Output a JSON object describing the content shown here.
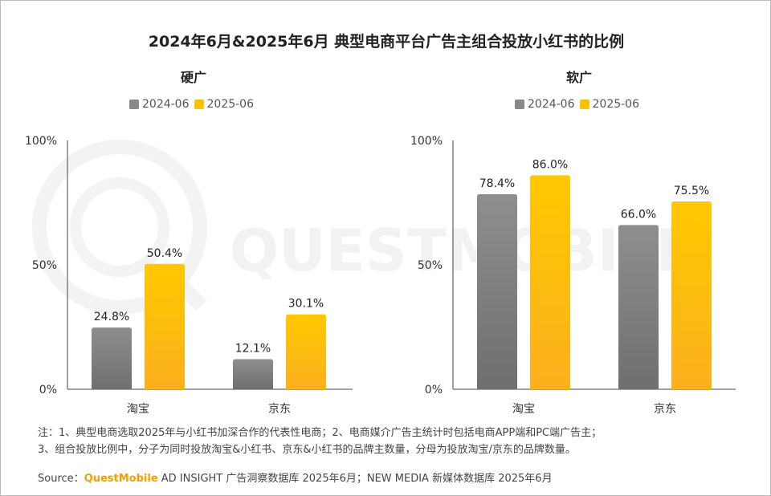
{
  "title": "2024年6月&2025年6月 典型电商平台广告主组合投放小红书的比例",
  "watermark_text": "QUESTMOBILE",
  "colors": {
    "series_2024": "#888888",
    "series_2025": "#ffc000",
    "axis": "#444444"
  },
  "chart_data": [
    {
      "type": "bar",
      "title": "硬广",
      "categories": [
        "淘宝",
        "京东"
      ],
      "series": [
        {
          "name": "2024-06",
          "values": [
            24.8,
            12.1
          ],
          "labels": [
            "24.8%",
            "12.1%"
          ]
        },
        {
          "name": "2025-06",
          "values": [
            50.4,
            30.1
          ],
          "labels": [
            "50.4%",
            "30.1%"
          ]
        }
      ],
      "ylim": [
        0,
        100
      ],
      "yticks": [
        "0%",
        "50%",
        "100%"
      ],
      "legend_position": "top",
      "grid": false
    },
    {
      "type": "bar",
      "title": "软广",
      "categories": [
        "淘宝",
        "京东"
      ],
      "series": [
        {
          "name": "2024-06",
          "values": [
            78.4,
            66.0
          ],
          "labels": [
            "78.4%",
            "66.0%"
          ]
        },
        {
          "name": "2025-06",
          "values": [
            86.0,
            75.5
          ],
          "labels": [
            "86.0%",
            "75.5%"
          ]
        }
      ],
      "ylim": [
        0,
        100
      ],
      "yticks": [
        "0%",
        "50%",
        "100%"
      ],
      "legend_position": "top",
      "grid": false
    }
  ],
  "notes": {
    "line1": "注：1、典型电商选取2025年与小红书加深合作的代表性电商；2、电商媒介广告主统计时包括电商APP端和PC端广告主；",
    "line2": "3、组合投放比例中，分子为同时投放淘宝&小红书、京东&小红书的品牌主数量，分母为投放淘宝/京东的品牌数量。"
  },
  "source": {
    "prefix": "Source：",
    "brand": "QuestMobile",
    "rest": " AD INSIGHT 广告洞察数据库 2025年6月；NEW MEDIA 新媒体数据库 2025年6月"
  }
}
